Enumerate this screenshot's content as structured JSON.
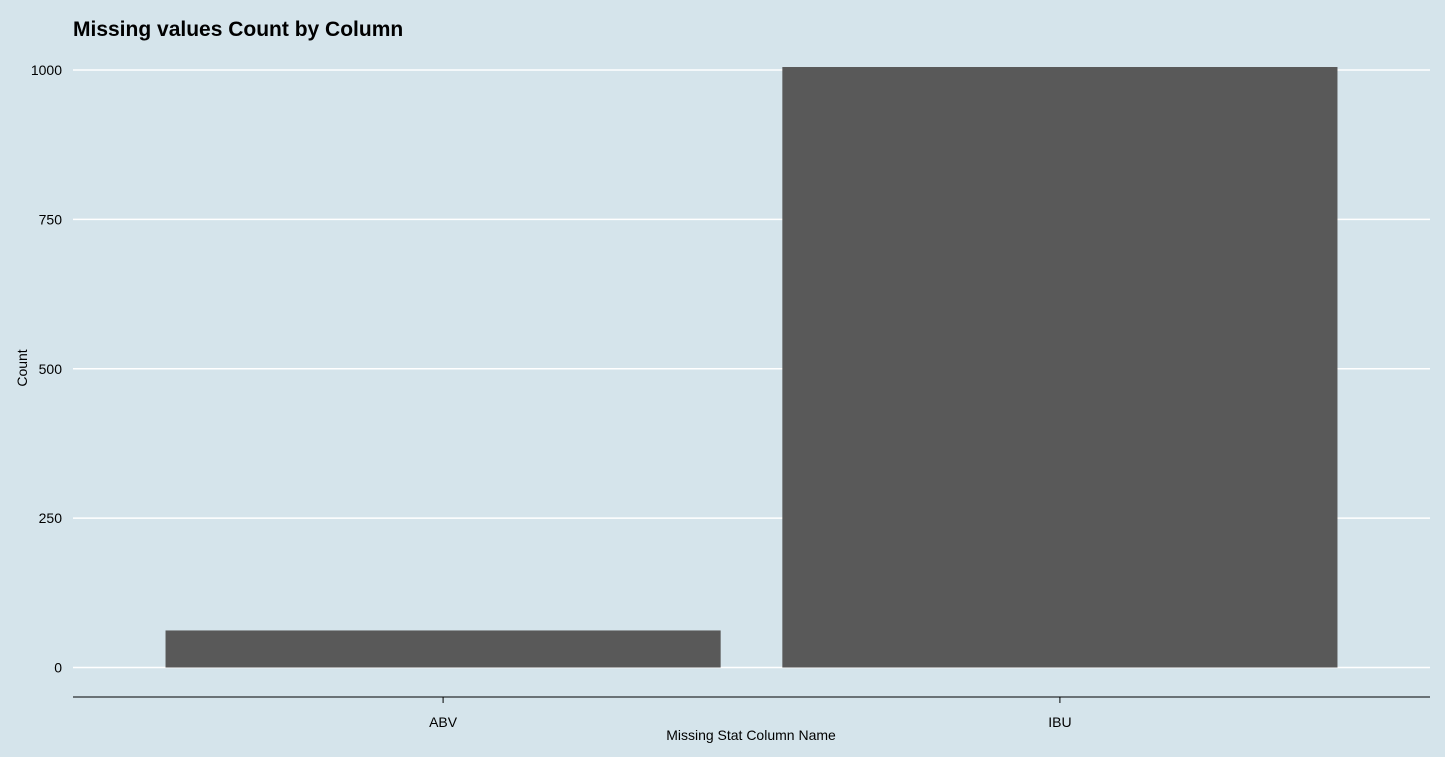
{
  "colors": {
    "panel_background": "#d5e4eb",
    "gridline": "#ffffff",
    "bar": "#595959",
    "axis_line": "#000000"
  },
  "chart_data": {
    "type": "bar",
    "title": "Missing values Count by Column",
    "xlabel": "Missing Stat Column Name",
    "ylabel": "Count",
    "categories": [
      "ABV",
      "IBU"
    ],
    "values": [
      62,
      1005
    ],
    "ylim": [
      -50,
      1010
    ],
    "yticks": [
      0,
      250,
      500,
      750,
      1000
    ],
    "grid": "horizontal-major",
    "legend": "none"
  }
}
